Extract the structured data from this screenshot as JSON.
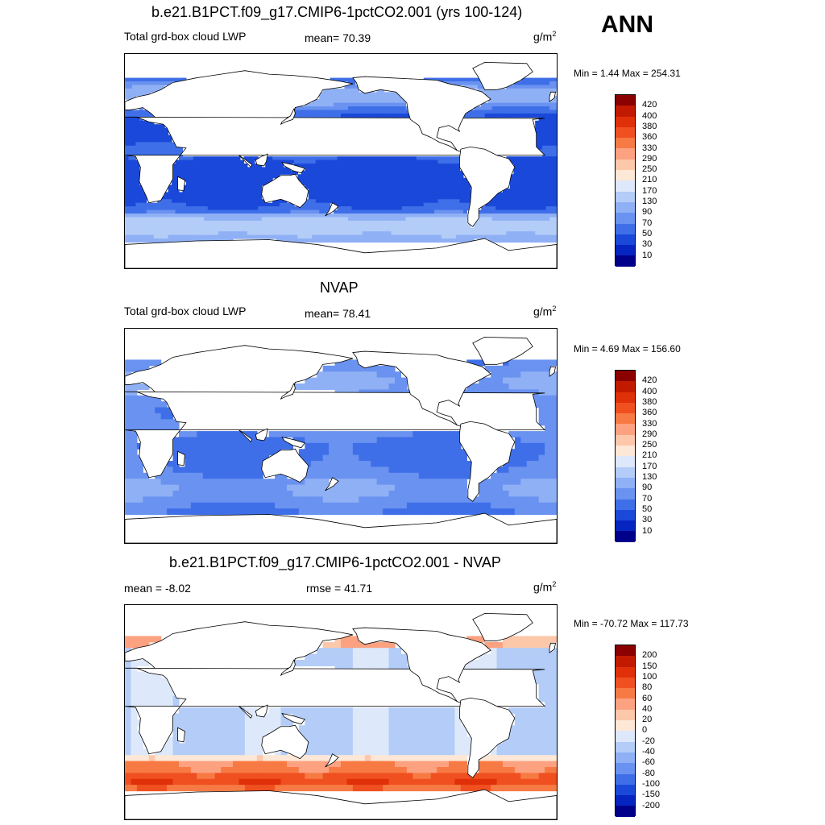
{
  "season": "ANN",
  "panels": [
    {
      "title": "b.e21.B1PCT.f09_g17.CMIP6-1pctCO2.001 (yrs 100-124)",
      "left_text": "Total grd-box cloud LWP",
      "center_text": "mean=  70.39",
      "units": "g/m",
      "units_sup": "2",
      "minmax": "Min =    1.44 Max = 254.31",
      "levels": [
        "420",
        "400",
        "380",
        "360",
        "330",
        "290",
        "250",
        "210",
        "170",
        "130",
        "90",
        "70",
        "50",
        "30",
        "10"
      ],
      "colors": [
        "#8b0000",
        "#c21a00",
        "#e0300a",
        "#f05020",
        "#f77a45",
        "#fca281",
        "#fdc7aa",
        "#fde7d6",
        "#dde8fb",
        "#b3ccf8",
        "#8fb0f5",
        "#6a92f0",
        "#3f6fe8",
        "#1a49da",
        "#0624c0",
        "#00008b"
      ],
      "field": "model"
    },
    {
      "title": "NVAP",
      "left_text": "Total grd-box cloud LWP",
      "center_text": "mean=  78.41",
      "units": "g/m",
      "units_sup": "2",
      "minmax": "Min =    4.69 Max = 156.60",
      "levels": [
        "420",
        "400",
        "380",
        "360",
        "330",
        "290",
        "250",
        "210",
        "170",
        "130",
        "90",
        "70",
        "50",
        "30",
        "10"
      ],
      "colors": [
        "#8b0000",
        "#c21a00",
        "#e0300a",
        "#f05020",
        "#f77a45",
        "#fca281",
        "#fdc7aa",
        "#fde7d6",
        "#dde8fb",
        "#b3ccf8",
        "#8fb0f5",
        "#6a92f0",
        "#3f6fe8",
        "#1a49da",
        "#0624c0",
        "#00008b"
      ],
      "field": "obs"
    },
    {
      "title": "b.e21.B1PCT.f09_g17.CMIP6-1pctCO2.001 - NVAP",
      "left_text": "mean =  -8.02",
      "center_text": "rmse =  41.71",
      "units": "g/m",
      "units_sup": "2",
      "minmax": "Min = -70.72 Max = 117.73",
      "levels": [
        "200",
        "150",
        "100",
        "80",
        "60",
        "40",
        "20",
        "0",
        "-20",
        "-40",
        "-60",
        "-80",
        "-100",
        "-150",
        "-200"
      ],
      "colors": [
        "#8b0000",
        "#c21a00",
        "#e0300a",
        "#f05020",
        "#f77a45",
        "#fca281",
        "#fdc7aa",
        "#fde7d6",
        "#dde8fb",
        "#b3ccf8",
        "#8fb0f5",
        "#6a92f0",
        "#3f6fe8",
        "#1a49da",
        "#0624c0",
        "#00008b"
      ],
      "field": "diff"
    }
  ]
}
